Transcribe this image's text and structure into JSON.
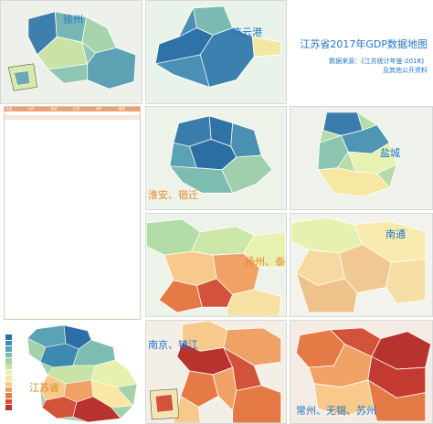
{
  "title": {
    "main": "江苏省2017年GDP数据地图",
    "source_line1": "数据来源：《江苏统计年鉴-2018》",
    "source_line2": "及其他公开资料"
  },
  "panels": {
    "xuzhou": "徐州",
    "lianyungang": "连云港",
    "huaian_suqian": "淮安、宿迁",
    "yancheng": "盐城",
    "yangzhou_taizhou": "扬州、泰州",
    "nantong": "南通",
    "jiangsu": "江苏省",
    "nanjing_zhenjiang": "南京、镇江",
    "changzhou_wuxi_suzhou": "常州、无锡、苏州"
  },
  "colors": {
    "accent": "#1f77c8",
    "scale": [
      "#2c6fa8",
      "#3d8ab0",
      "#5aa3b5",
      "#7dbcb1",
      "#a3d2a8",
      "#c8e3a6",
      "#e6f1b0",
      "#f9e7a4",
      "#f7c98a",
      "#f0a266",
      "#e57a46",
      "#d2523a",
      "#b8322e"
    ]
  },
  "table": {
    "header": [
      "区县",
      "GDP",
      "增速",
      "区县",
      "GDP",
      "增速"
    ],
    "rows": [
      [
        "",
        "",
        "",
        "",
        "",
        ""
      ],
      [
        "",
        "",
        "",
        "",
        "",
        ""
      ],
      [
        "",
        "",
        "",
        "",
        "",
        ""
      ]
    ]
  },
  "legend": {
    "items": [
      "",
      "",
      "",
      "",
      "",
      "",
      "",
      "",
      "",
      "",
      "",
      "",
      ""
    ]
  }
}
